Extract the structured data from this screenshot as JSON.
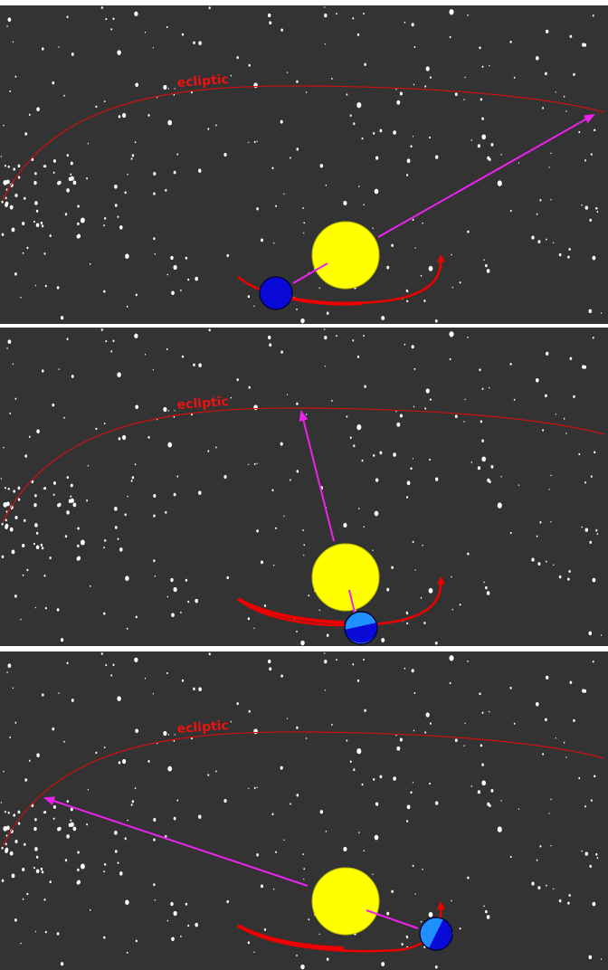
{
  "figure": {
    "ecliptic_label": "ecliptic",
    "colors": {
      "background": "#333333",
      "separator": "#ffffff",
      "stars": "#ffffff",
      "ecliptic": "#cc1111",
      "orbit": "#ee0000",
      "sun": "#ffff00",
      "earth_day": "#1e90ff",
      "earth_night": "#0a0ad8",
      "sightline": "#ee22ee"
    },
    "icons": {
      "sun": "sun-icon",
      "earth": "earth-icon"
    },
    "panels": [
      {
        "name": "panel-1",
        "earth_position": "lower-left of sun",
        "sun_seen_against": "right end of ecliptic"
      },
      {
        "name": "panel-2",
        "earth_position": "directly below sun",
        "sun_seen_against": "middle of ecliptic"
      },
      {
        "name": "panel-3",
        "earth_position": "lower-right of sun",
        "sun_seen_against": "left end of ecliptic"
      }
    ]
  }
}
